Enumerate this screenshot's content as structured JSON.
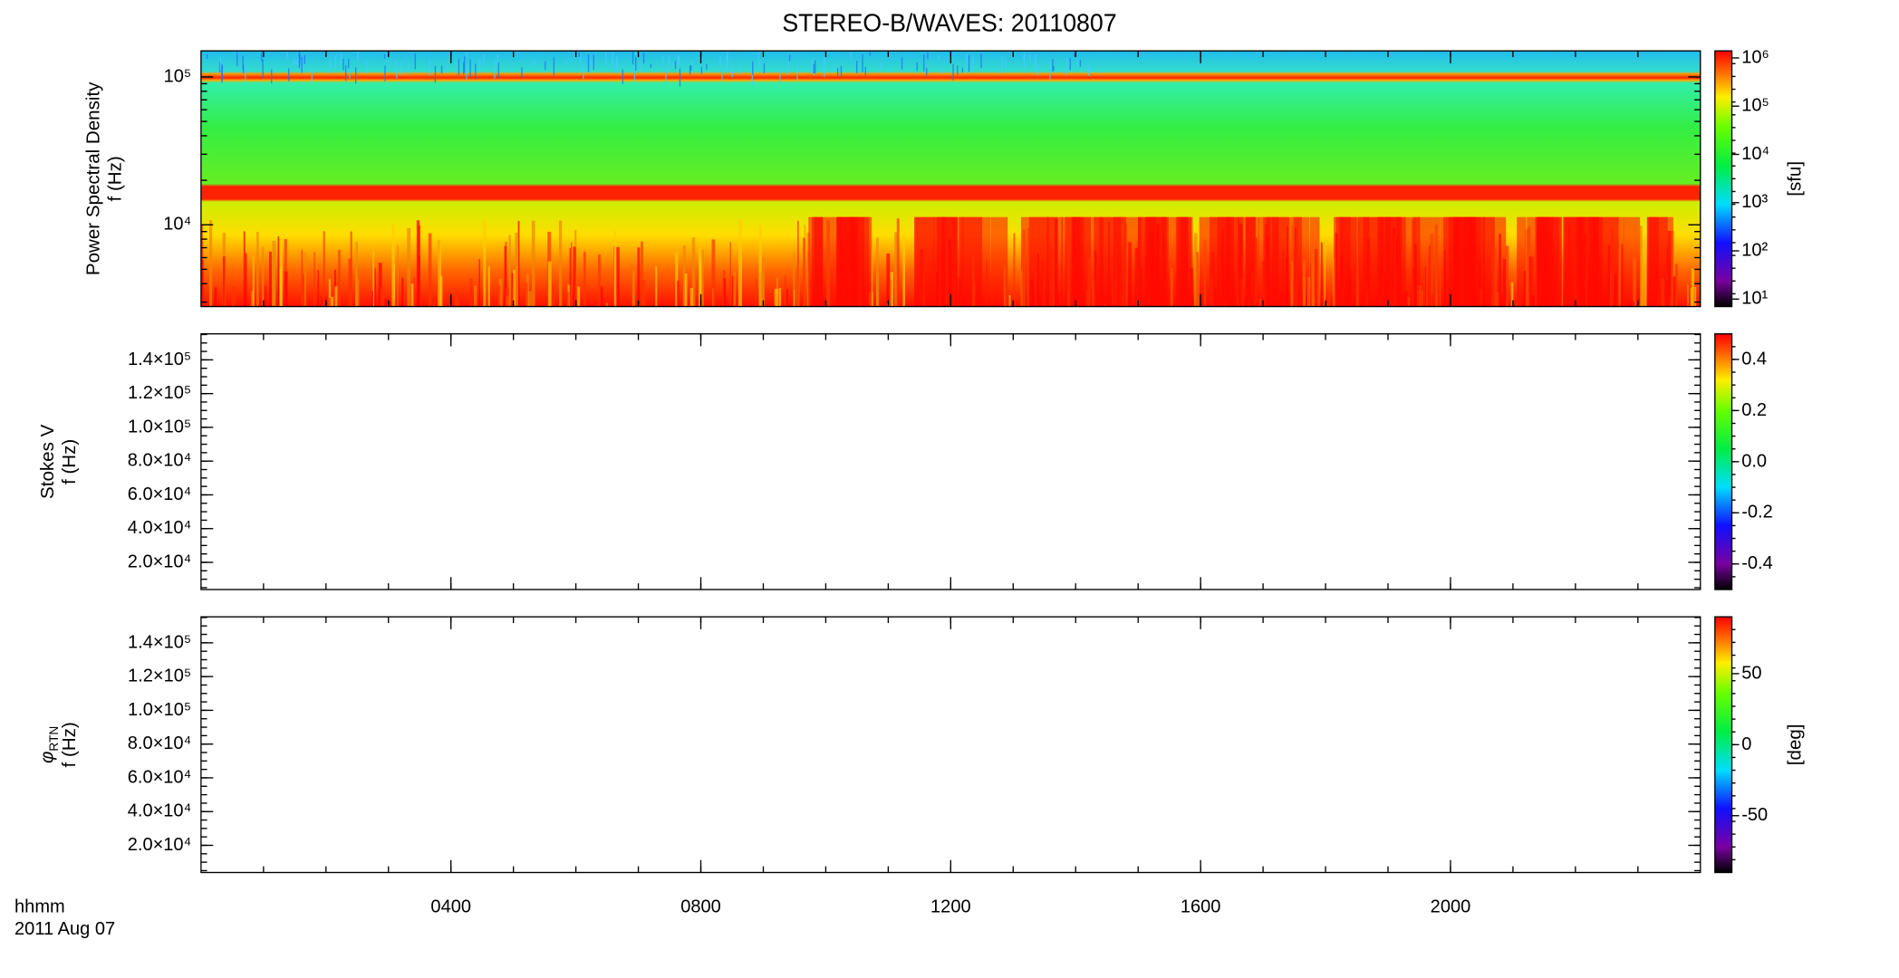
{
  "chart_data": [
    {
      "type": "spectrogram",
      "title": "STEREO-B/WAVES: 20110807",
      "ylabel": [
        "Power Spectral Density",
        "f (Hz)"
      ],
      "ylog": true,
      "ylim": [
        2800,
        150000
      ],
      "yticks": [
        {
          "value": 10000,
          "label": "10⁴"
        },
        {
          "value": 100000,
          "label": "10⁵"
        }
      ],
      "xlim": [
        0,
        24
      ],
      "colorbar": {
        "log": true,
        "lim": [
          7,
          1400000
        ],
        "label": "[sfu]",
        "ticks": [
          {
            "value": 10,
            "label": "10¹"
          },
          {
            "value": 100,
            "label": "10²"
          },
          {
            "value": 1000,
            "label": "10³"
          },
          {
            "value": 10000,
            "label": "10⁴"
          },
          {
            "value": 100000,
            "label": "10⁵"
          },
          {
            "value": 1000000,
            "label": "10⁶"
          }
        ]
      }
    },
    {
      "type": "spectrogram",
      "ylabel": [
        "Stokes V",
        "f (Hz)"
      ],
      "ylog": false,
      "ylim": [
        3900,
        155400
      ],
      "yticks": [
        {
          "value": 20000,
          "label": "2.0×10⁴"
        },
        {
          "value": 40000,
          "label": "4.0×10⁴"
        },
        {
          "value": 60000,
          "label": "6.0×10⁴"
        },
        {
          "value": 80000,
          "label": "8.0×10⁴"
        },
        {
          "value": 100000,
          "label": "1.0×10⁵"
        },
        {
          "value": 120000,
          "label": "1.2×10⁵"
        },
        {
          "value": 140000,
          "label": "1.4×10⁵"
        }
      ],
      "xlim": [
        0,
        24
      ],
      "colorbar": {
        "log": false,
        "lim": [
          -0.5,
          0.5
        ],
        "ticks": [
          -0.4,
          -0.2,
          {
            "value": 0,
            "label": "0.0"
          },
          0.2,
          0.4
        ]
      }
    },
    {
      "type": "spectrogram",
      "ylabel": [
        "φ",
        "RTN",
        "f (Hz)"
      ],
      "ylog": false,
      "ylim": [
        3900,
        155400
      ],
      "yticks": [
        {
          "value": 20000,
          "label": "2.0×10⁴"
        },
        {
          "value": 40000,
          "label": "4.0×10⁴"
        },
        {
          "value": 60000,
          "label": "6.0×10⁴"
        },
        {
          "value": 80000,
          "label": "8.0×10⁴"
        },
        {
          "value": 100000,
          "label": "1.0×10⁵"
        },
        {
          "value": 120000,
          "label": "1.2×10⁵"
        },
        {
          "value": 140000,
          "label": "1.4×10⁵"
        }
      ],
      "xlim": [
        0,
        24
      ],
      "xlabel": [
        "hhmm",
        "2011 Aug 07"
      ],
      "xticks": [
        {
          "value": 4,
          "label": "0400"
        },
        {
          "value": 8,
          "label": "0800"
        },
        {
          "value": 12,
          "label": "1200"
        },
        {
          "value": 16,
          "label": "1600"
        },
        {
          "value": 20,
          "label": "2000"
        }
      ],
      "colorbar": {
        "log": false,
        "lim": [
          -90,
          90
        ],
        "label": "[deg]",
        "ticks": [
          -50,
          0,
          50
        ]
      }
    }
  ]
}
